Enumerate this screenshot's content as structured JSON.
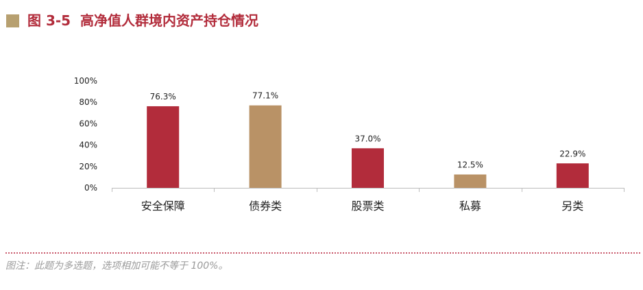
{
  "header": {
    "figure_label": "图 3-5",
    "title": "高净值人群境内资产持仓情况"
  },
  "note": "图注：此题为多选题，选项相加可能不等于 100%。",
  "colors": {
    "accent_crimson": "#b22c3b",
    "accent_tan": "#b99266",
    "title_square": "#b7a070",
    "dotted_rule": "#c9586a",
    "axis": "#bdbdbd",
    "text": "#222222"
  },
  "chart_data": {
    "type": "bar",
    "categories": [
      "安全保障",
      "债券类",
      "股票类",
      "私募",
      "另类"
    ],
    "values": [
      76.3,
      77.1,
      37.0,
      12.5,
      22.9
    ],
    "value_labels": [
      "76.3%",
      "77.1%",
      "37.0%",
      "12.5%",
      "22.9%"
    ],
    "bar_colors": [
      "#b22c3b",
      "#b99266",
      "#b22c3b",
      "#b99266",
      "#b22c3b"
    ],
    "yticks": [
      "0%",
      "20%",
      "40%",
      "60%",
      "80%",
      "100%"
    ],
    "ylim": [
      0,
      100
    ],
    "grid": false,
    "legend": "none"
  }
}
